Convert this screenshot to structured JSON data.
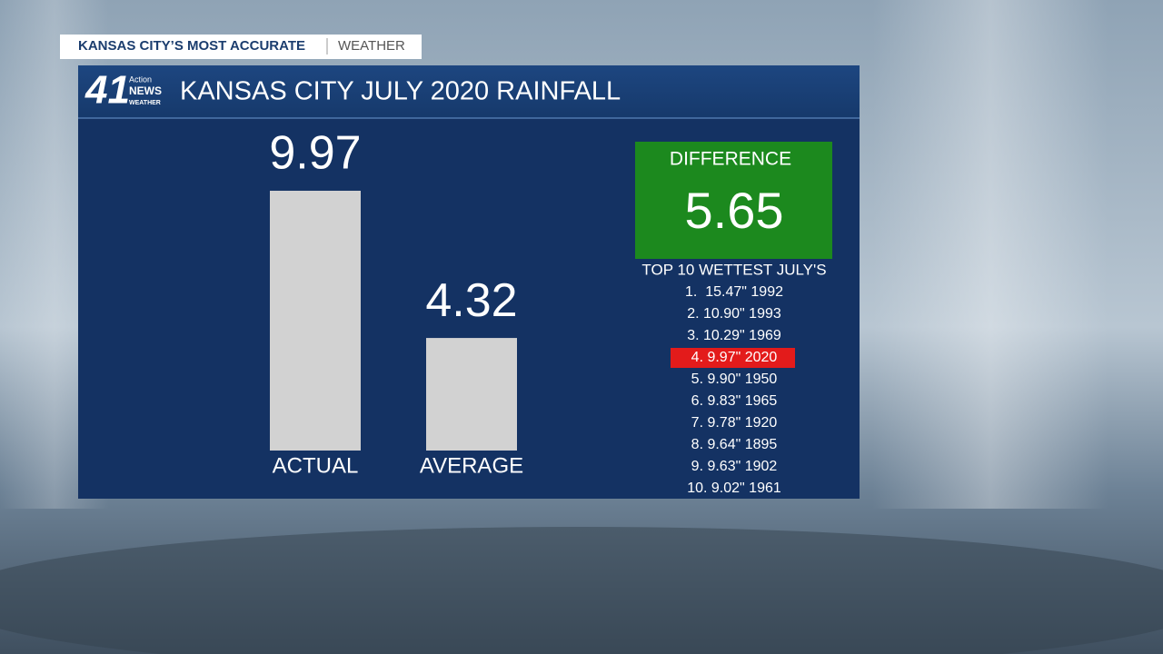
{
  "header": {
    "brand": "KANSAS CITY’S MOST ACCURATE",
    "section": "WEATHER"
  },
  "logo": {
    "number": "41",
    "line1": "Action",
    "line2": "NEWS",
    "line3": "WEATHER"
  },
  "chart_data": {
    "type": "bar",
    "title": "KANSAS CITY JULY 2020 RAINFALL",
    "categories": [
      "ACTUAL",
      "AVERAGE"
    ],
    "values": [
      9.97,
      4.32
    ],
    "color": "#d2d2d2"
  },
  "difference": {
    "label": "DIFFERENCE",
    "value": "5.65"
  },
  "top_list": {
    "title": "TOP 10 WETTEST JULY'S",
    "items": [
      {
        "text": "1.  15.47\" 1992",
        "highlight": false
      },
      {
        "text": "2. 10.90\" 1993",
        "highlight": false
      },
      {
        "text": "3. 10.29\" 1969",
        "highlight": false
      },
      {
        "text": "4. 9.97\" 2020",
        "highlight": true
      },
      {
        "text": "5. 9.90\" 1950",
        "highlight": false
      },
      {
        "text": "6. 9.83\" 1965",
        "highlight": false
      },
      {
        "text": "7. 9.78\" 1920",
        "highlight": false
      },
      {
        "text": "8. 9.64\" 1895",
        "highlight": false
      },
      {
        "text": "9. 9.63\" 1902",
        "highlight": false
      },
      {
        "text": "10. 9.02\" 1961",
        "highlight": false
      }
    ]
  }
}
